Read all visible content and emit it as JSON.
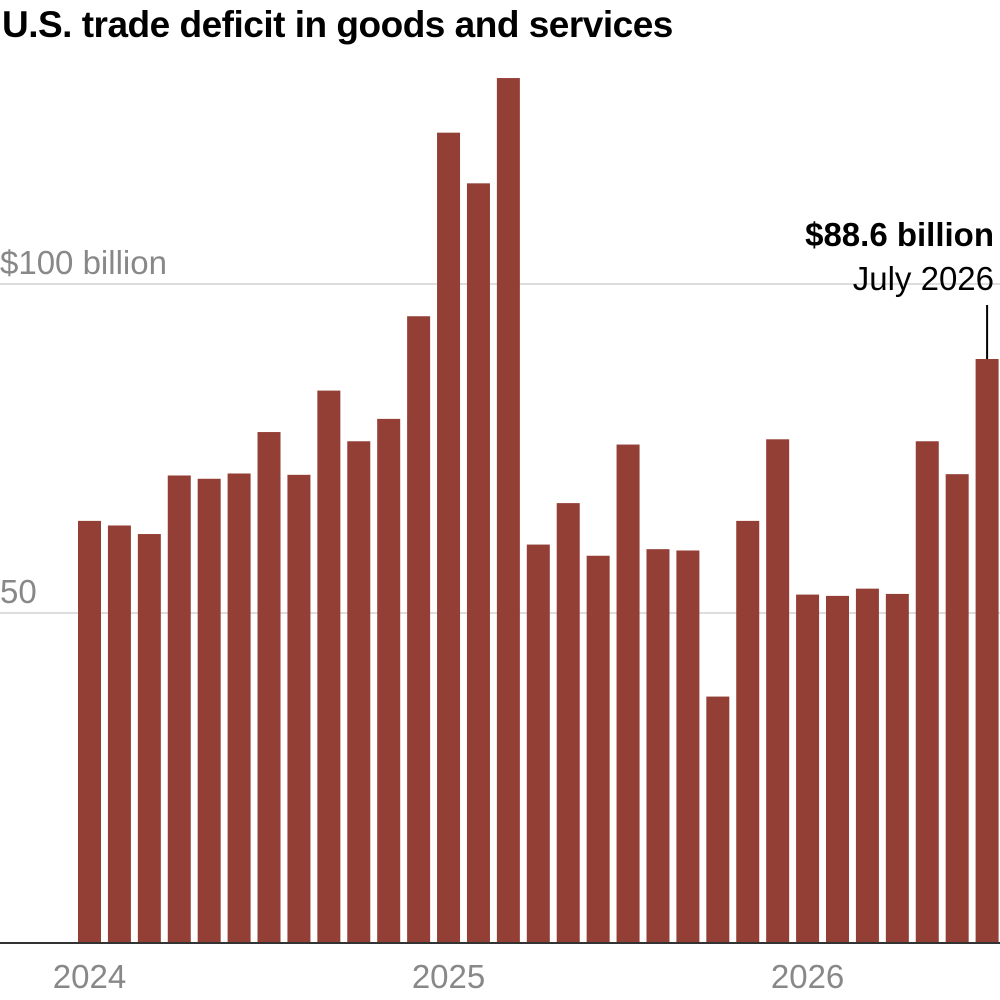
{
  "title": "U.S. trade deficit in goods and services",
  "colors": {
    "bar": "#933f35",
    "gridline": "#dddddd",
    "baseline": "#333333",
    "tick_label": "#888888",
    "annotation": "#000000"
  },
  "y_ticks": [
    {
      "value": 100,
      "label": "$100 billion"
    },
    {
      "value": 50,
      "label": "50"
    }
  ],
  "x_ticks": [
    {
      "label": "2024",
      "month_index": 0
    },
    {
      "label": "2025",
      "month_index": 12
    },
    {
      "label": "2026",
      "month_index": 24
    }
  ],
  "annotation": {
    "value_label": "$88.6 billion",
    "date_label": "July 2026",
    "month_index": 30
  },
  "chart_data": {
    "type": "bar",
    "title": "U.S. trade deficit in goods and services",
    "xlabel": "",
    "ylabel": "",
    "ylim": [
      0,
      133
    ],
    "grid": true,
    "categories": [
      "Jan 2024",
      "Feb 2024",
      "Mar 2024",
      "Apr 2024",
      "May 2024",
      "Jun 2024",
      "Jul 2024",
      "Aug 2024",
      "Sep 2024",
      "Oct 2024",
      "Nov 2024",
      "Dec 2024",
      "Jan 2025",
      "Feb 2025",
      "Mar 2025",
      "Apr 2025",
      "May 2025",
      "Jun 2025",
      "Jul 2025",
      "Aug 2025",
      "Sep 2025",
      "Oct 2025",
      "Nov 2025",
      "Dec 2025",
      "Jan 2026",
      "Feb 2026",
      "Mar 2026",
      "Apr 2026",
      "May 2026",
      "Jun 2026",
      "Jul 2026"
    ],
    "values": [
      64.0,
      63.3,
      62.0,
      70.9,
      70.4,
      71.2,
      77.5,
      71.0,
      83.8,
      76.1,
      79.5,
      95.1,
      123.0,
      115.3,
      131.3,
      60.4,
      66.7,
      58.7,
      75.6,
      59.7,
      59.5,
      37.3,
      64.0,
      76.4,
      52.8,
      52.6,
      53.7,
      52.9,
      76.1,
      71.1,
      88.6
    ]
  }
}
